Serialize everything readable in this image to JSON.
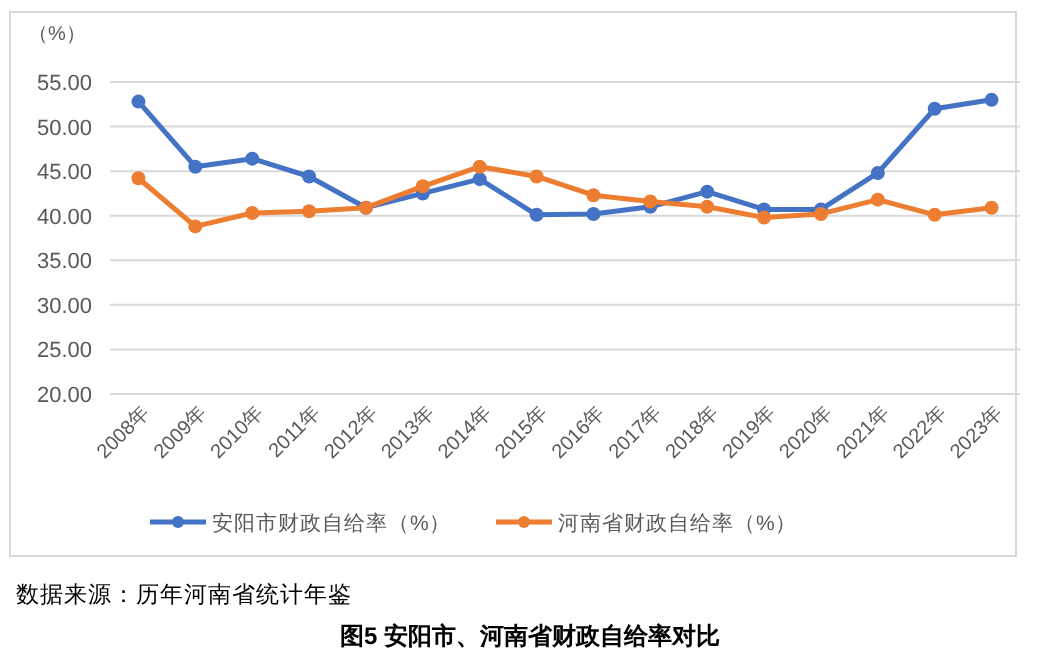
{
  "chart_data": {
    "type": "line",
    "title": "图5 安阳市、河南省财政自给率对比",
    "ylabel": "（%）",
    "annotations": [
      "数据来源：历年河南省统计年鉴"
    ],
    "categories": [
      "2008年",
      "2009年",
      "2010年",
      "2011年",
      "2012年",
      "2013年",
      "2014年",
      "2015年",
      "2016年",
      "2017年",
      "2018年",
      "2019年",
      "2020年",
      "2021年",
      "2022年",
      "2023年"
    ],
    "series": [
      {
        "name": "安阳市财政自给率（%）",
        "color": "#4472c4",
        "values": [
          52.8,
          45.5,
          46.4,
          44.4,
          40.9,
          42.5,
          44.1,
          40.1,
          40.2,
          41.0,
          42.7,
          40.7,
          40.7,
          44.8,
          52.0,
          53.0
        ]
      },
      {
        "name": "河南省财政自给率（%）",
        "color": "#ed7d31",
        "values": [
          44.2,
          38.8,
          40.3,
          40.5,
          40.9,
          43.3,
          45.5,
          44.4,
          42.3,
          41.6,
          41.0,
          39.8,
          40.2,
          41.8,
          40.1,
          40.9
        ]
      }
    ],
    "ylim": [
      20,
      55
    ],
    "yticks": [
      {
        "value": 20,
        "label": "20.00"
      },
      {
        "value": 25,
        "label": "25.00"
      },
      {
        "value": 30,
        "label": "30.00"
      },
      {
        "value": 35,
        "label": "35.00"
      },
      {
        "value": 40,
        "label": "40.00"
      },
      {
        "value": 45,
        "label": "45.00"
      },
      {
        "value": 50,
        "label": "50.00"
      },
      {
        "value": 55,
        "label": "55.00"
      }
    ],
    "grid": "y",
    "legend": "bottom",
    "marker": "circle",
    "line_style": "solid"
  }
}
